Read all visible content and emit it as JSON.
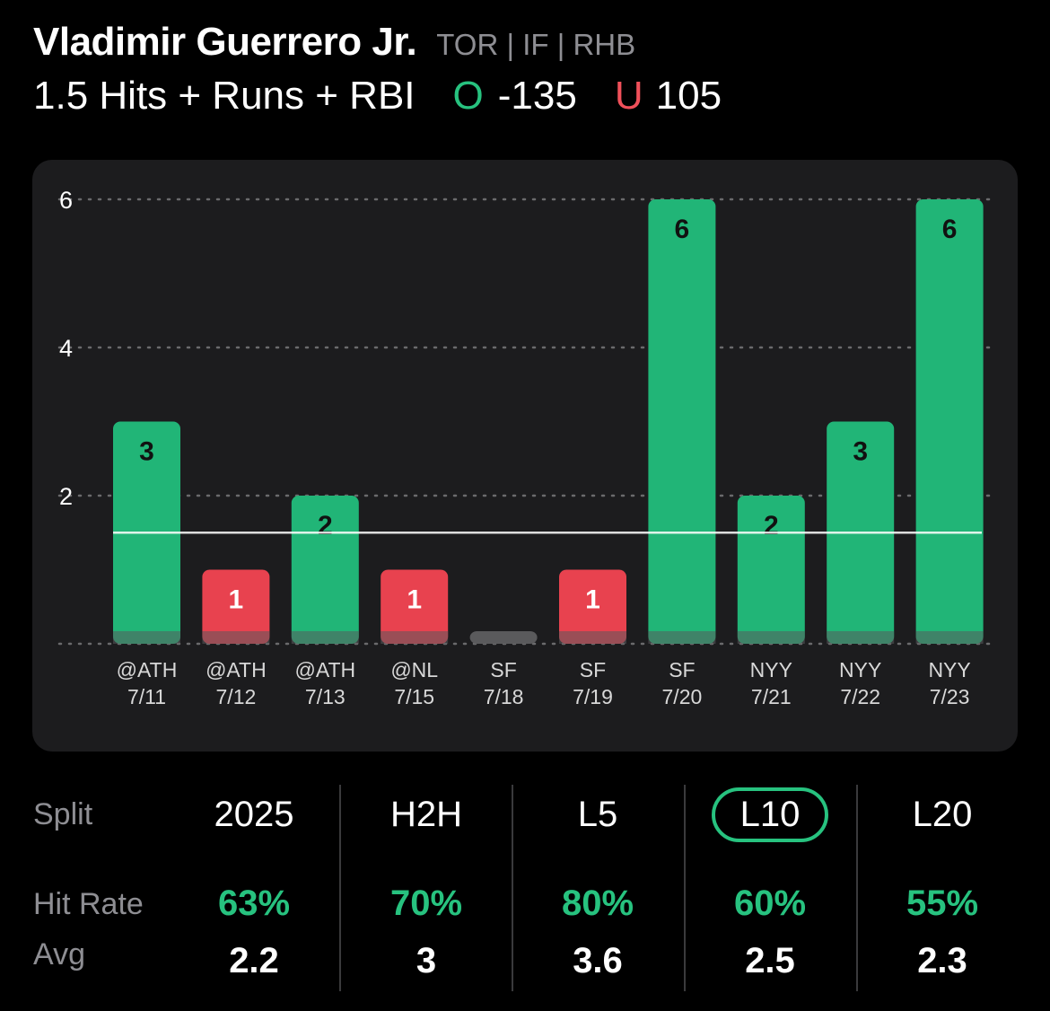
{
  "player": {
    "name": "Vladimir Guerrero Jr.",
    "meta": "TOR | IF | RHB"
  },
  "prop": {
    "label": "1.5 Hits + Runs + RBI",
    "over_symbol": "O",
    "over_odds": "-135",
    "under_symbol": "U",
    "under_odds": "105"
  },
  "colors": {
    "over": "#27c27f",
    "bar_over": "#21b577",
    "bar_under": "#e8424f",
    "bar_zero": "#5a5a5c"
  },
  "chart_data": {
    "type": "bar",
    "categories": [
      [
        "@ATH",
        "7/11"
      ],
      [
        "@ATH",
        "7/12"
      ],
      [
        "@ATH",
        "7/13"
      ],
      [
        "@NL",
        "7/15"
      ],
      [
        "SF",
        "7/18"
      ],
      [
        "SF",
        "7/19"
      ],
      [
        "SF",
        "7/20"
      ],
      [
        "NYY",
        "7/21"
      ],
      [
        "NYY",
        "7/22"
      ],
      [
        "NYY",
        "7/23"
      ]
    ],
    "values": [
      3,
      1,
      2,
      1,
      0,
      1,
      6,
      2,
      3,
      6
    ],
    "line": 1.5,
    "ylim": [
      0,
      6
    ],
    "yticks": [
      2,
      4,
      6
    ],
    "grid": true
  },
  "splits": {
    "row_labels": {
      "split": "Split",
      "hit_rate": "Hit Rate",
      "avg": "Avg"
    },
    "columns": [
      {
        "name": "2025",
        "hit_rate": "63%",
        "avg": "2.2",
        "active": false
      },
      {
        "name": "H2H",
        "hit_rate": "70%",
        "avg": "3",
        "active": false
      },
      {
        "name": "L5",
        "hit_rate": "80%",
        "avg": "3.6",
        "active": false
      },
      {
        "name": "L10",
        "hit_rate": "60%",
        "avg": "2.5",
        "active": true
      },
      {
        "name": "L20",
        "hit_rate": "55%",
        "avg": "2.3",
        "active": false
      }
    ]
  }
}
